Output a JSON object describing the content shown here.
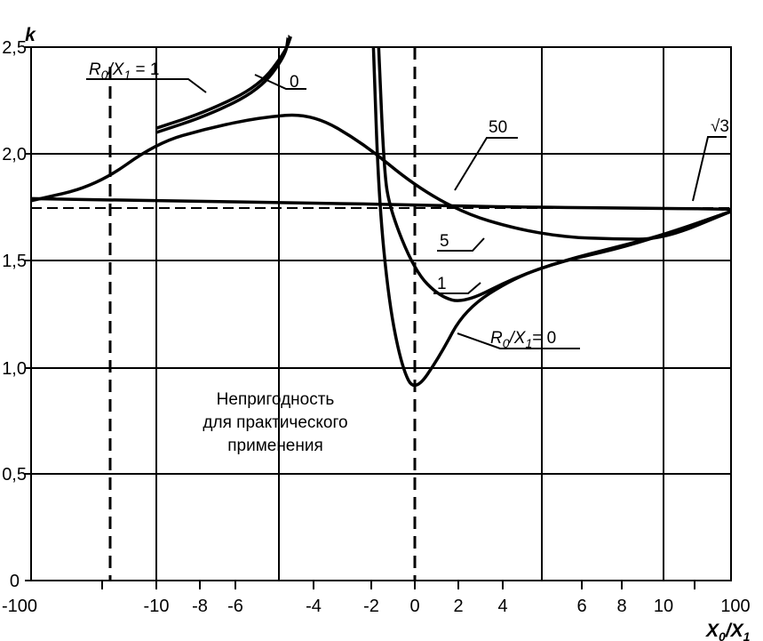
{
  "chart_data": {
    "type": "line",
    "xlabel": "X0/X1",
    "ylabel": "k",
    "ylim": [
      0,
      2.5
    ],
    "x_tick_labels": [
      "-100",
      "-10",
      "-8",
      "-6",
      "-4",
      "-2",
      "0",
      "2",
      "4",
      "6",
      "8",
      "10",
      "100"
    ],
    "x_ticks": [
      -100,
      -10,
      -8,
      -6,
      -4,
      -2,
      0,
      2,
      4,
      6,
      8,
      10,
      100
    ],
    "y_tick_labels": [
      "0",
      "0,5",
      "1,0",
      "1,5",
      "2,0",
      "2,5"
    ],
    "y_ticks": [
      0,
      0.5,
      1.0,
      1.5,
      2.0,
      2.5
    ],
    "grid": true,
    "reference_line": {
      "label": "√3",
      "value": 1.732
    },
    "unsuitable_region": {
      "text": [
        "Непригодность",
        "для практического",
        "применения"
      ],
      "x_range": [
        -30,
        0
      ]
    },
    "series": [
      {
        "name": "R0/X1 = 1",
        "points": [
          [
            -10,
            2.12
          ],
          [
            -8,
            2.2
          ],
          [
            -6,
            2.32
          ],
          [
            -5,
            2.48
          ],
          [
            -4.8,
            2.55
          ]
        ]
      },
      {
        "name": "0",
        "points": [
          [
            -10,
            2.1
          ],
          [
            -8,
            2.18
          ],
          [
            -6,
            2.3
          ],
          [
            -5,
            2.46
          ],
          [
            -4.9,
            2.55
          ]
        ]
      },
      {
        "name": "50",
        "points": [
          [
            -100,
            1.79
          ],
          [
            -10,
            1.78
          ],
          [
            -4,
            1.77
          ],
          [
            0,
            1.76
          ],
          [
            4,
            1.75
          ],
          [
            10,
            1.745
          ],
          [
            100,
            1.74
          ]
        ]
      },
      {
        "name": "5",
        "points": [
          [
            -100,
            1.78
          ],
          [
            -30,
            1.85
          ],
          [
            -10,
            2.05
          ],
          [
            -8,
            2.12
          ],
          [
            -6,
            2.17
          ],
          [
            -4,
            2.19
          ],
          [
            -2,
            2.05
          ],
          [
            0,
            1.85
          ],
          [
            2,
            1.72
          ],
          [
            4,
            1.65
          ],
          [
            6,
            1.61
          ],
          [
            8,
            1.6
          ],
          [
            10,
            1.6
          ],
          [
            100,
            1.73
          ]
        ]
      },
      {
        "name": "1",
        "points": [
          [
            -1.4,
            2.5
          ],
          [
            -1.2,
            1.95
          ],
          [
            -1,
            1.75
          ],
          [
            0,
            1.45
          ],
          [
            1,
            1.33
          ],
          [
            2,
            1.3
          ],
          [
            4,
            1.42
          ],
          [
            6,
            1.5
          ],
          [
            8,
            1.55
          ],
          [
            10,
            1.62
          ],
          [
            100,
            1.73
          ]
        ]
      },
      {
        "name": "R0/X1 = 0",
        "points": [
          [
            -1.6,
            2.5
          ],
          [
            -1.4,
            1.8
          ],
          [
            -1,
            1.3
          ],
          [
            -0.5,
            1.0
          ],
          [
            0,
            0.88
          ],
          [
            1,
            1.05
          ],
          [
            2,
            1.27
          ],
          [
            4,
            1.42
          ],
          [
            6,
            1.5
          ],
          [
            8,
            1.56
          ],
          [
            10,
            1.62
          ],
          [
            100,
            1.73
          ]
        ]
      }
    ]
  },
  "annotations": {
    "ylabel": "k",
    "xlabel_main": "X",
    "xlabel_sub": "0",
    "xlabel_main2": "/X",
    "xlabel_sub2": "1",
    "r1_main": "R",
    "r1_sub": "0",
    "r1_mid": "/X",
    "r1_sub2": "1",
    "r1_tail": " = 1",
    "r0_main": "R",
    "r0_sub": "0",
    "r0_mid": "/X",
    "r0_sub2": "1",
    "r0_tail": "= 0",
    "lab_0": "0",
    "lab_50": "50",
    "lab_5": "5",
    "lab_1": "1",
    "sqrt_label": "√3",
    "unsuitable_1": "Непригодность",
    "unsuitable_2": "для практического",
    "unsuitable_3": "применения"
  }
}
